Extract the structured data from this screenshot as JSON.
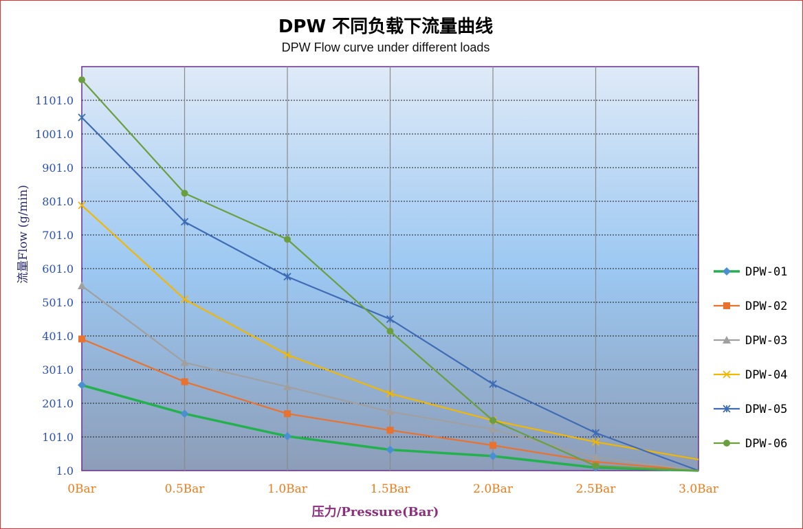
{
  "chart_data": {
    "type": "line",
    "title": "DPW 不同负载下流量曲线",
    "subtitle": "DPW Flow curve under different loads",
    "xlabel": "压力/Pressure(Bar)",
    "ylabel": "流量Flow (g/min)",
    "categories": [
      "0Bar",
      "0.5Bar",
      "1.0Bar",
      "1.5Bar",
      "2.0Bar",
      "2.5Bar",
      "3.0Bar"
    ],
    "yticks": [
      "1.0",
      "101.0",
      "201.0",
      "301.0",
      "401.0",
      "501.0",
      "601.0",
      "701.0",
      "801.0",
      "901.0",
      "1001.0",
      "1101.0"
    ],
    "ylim": [
      1,
      1201
    ],
    "grid": true,
    "legend_position": "right",
    "series": [
      {
        "name": "DPW-01",
        "color": "#22b14c",
        "marker": "diamond",
        "marker_color": "#4a8fcf",
        "values": [
          255,
          170,
          103,
          63,
          44,
          10,
          1
        ]
      },
      {
        "name": "DPW-02",
        "color": "#e8722e",
        "marker": "square",
        "marker_color": "#e8722e",
        "values": [
          392,
          265,
          170,
          121,
          76,
          27,
          1
        ]
      },
      {
        "name": "DPW-03",
        "color": "#a0a0a0",
        "marker": "triangle",
        "marker_color": "#a0a0a0",
        "values": [
          550,
          322,
          250,
          176,
          124,
          40,
          1
        ]
      },
      {
        "name": "DPW-04",
        "color": "#f2b700",
        "marker": "x",
        "marker_color": "#f2b700",
        "values": [
          789,
          510,
          345,
          230,
          150,
          86,
          34
        ]
      },
      {
        "name": "DPW-05",
        "color": "#3f6bb5",
        "marker": "star",
        "marker_color": "#3f6bb5",
        "values": [
          1050,
          740,
          577,
          451,
          258,
          113,
          1
        ]
      },
      {
        "name": "DPW-06",
        "color": "#6a9e3f",
        "marker": "circle",
        "marker_color": "#6a9e3f",
        "values": [
          1162,
          825,
          688,
          415,
          150,
          15,
          1
        ]
      }
    ]
  }
}
